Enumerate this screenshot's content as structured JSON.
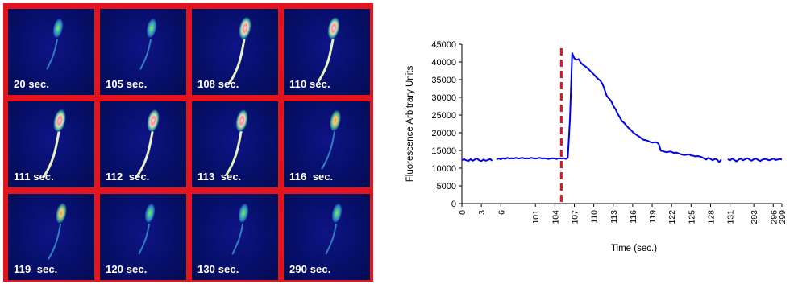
{
  "images": {
    "cells": [
      {
        "label": "20 sec.",
        "level": 0.35
      },
      {
        "label": "105 sec.",
        "level": 0.35
      },
      {
        "label": "108 sec.",
        "level": 0.95
      },
      {
        "label": "110 sec.",
        "level": 0.85
      },
      {
        "label": "111 sec.",
        "level": 1.0
      },
      {
        "label": "112  sec.",
        "level": 0.95
      },
      {
        "label": "113  sec.",
        "level": 0.9
      },
      {
        "label": "116  sec.",
        "level": 0.65
      },
      {
        "label": "119  sec.",
        "level": 0.55
      },
      {
        "label": "120 sec.",
        "level": 0.35
      },
      {
        "label": "130 sec.",
        "level": 0.35
      },
      {
        "label": "290 sec.",
        "level": 0.35
      }
    ],
    "border_color": "#e4141c"
  },
  "chart_data": {
    "type": "line",
    "xlabel": "Time (sec.)",
    "ylabel": "Fluorescence Arbitrary Units",
    "ylim": [
      0,
      45000
    ],
    "yticks": [
      0,
      5000,
      10000,
      15000,
      20000,
      25000,
      30000,
      35000,
      40000,
      45000
    ],
    "xticks": [
      "0",
      "3",
      "6",
      "101",
      "104",
      "107",
      "110",
      "113",
      "116",
      "119",
      "122",
      "125",
      "128",
      "131",
      "293",
      "296",
      "299"
    ],
    "series_color": "#0000ee",
    "stimulus_marker": {
      "after_tick": "104",
      "color": "#e4141c",
      "style": "dashed"
    },
    "series": [
      {
        "segments": [
          [
            [
              0,
              12300
            ],
            [
              1,
              12500
            ],
            [
              2,
              12200
            ],
            [
              3,
              12000
            ],
            [
              4,
              12500
            ],
            [
              5,
              12100
            ],
            [
              6,
              12400
            ],
            [
              7,
              12700
            ],
            [
              8,
              12200
            ],
            [
              9,
              12000
            ],
            [
              10,
              12400
            ],
            [
              11,
              12100
            ],
            [
              12,
              12300
            ],
            [
              13,
              12600
            ],
            [
              14,
              12100
            ]
          ],
          [
            [
              16,
              12400
            ],
            [
              17,
              12700
            ],
            [
              18,
              12500
            ],
            [
              19,
              12800
            ],
            [
              20,
              12600
            ],
            [
              21,
              12900
            ],
            [
              22,
              12700
            ],
            [
              23,
              12800
            ],
            [
              24,
              12700
            ],
            [
              25,
              12900
            ],
            [
              26,
              12700
            ],
            [
              27,
              12800
            ],
            [
              28,
              12900
            ],
            [
              29,
              12700
            ],
            [
              30,
              12800
            ],
            [
              31,
              12700
            ],
            [
              32,
              12900
            ],
            [
              33,
              12800
            ],
            [
              34,
              12700
            ],
            [
              35,
              12800
            ],
            [
              36,
              12900
            ],
            [
              37,
              12700
            ],
            [
              38,
              12800
            ],
            [
              39,
              12700
            ],
            [
              40,
              12600
            ],
            [
              41,
              12700
            ],
            [
              42,
              12800
            ],
            [
              43,
              12700
            ],
            [
              44,
              12600
            ],
            [
              45,
              12800
            ],
            [
              46,
              12700
            ],
            [
              47,
              12800
            ],
            [
              48,
              12600
            ],
            [
              49,
              12900
            ],
            [
              50,
              24000
            ],
            [
              51,
              42500
            ],
            [
              52,
              41000
            ],
            [
              53,
              40600
            ],
            [
              54,
              40800
            ],
            [
              55,
              39800
            ],
            [
              56,
              39200
            ],
            [
              57,
              38800
            ],
            [
              58,
              38300
            ],
            [
              59,
              37700
            ],
            [
              60,
              37100
            ],
            [
              61,
              36500
            ],
            [
              62,
              35800
            ],
            [
              63,
              35200
            ],
            [
              64,
              34700
            ],
            [
              65,
              33800
            ],
            [
              66,
              32200
            ],
            [
              67,
              30400
            ],
            [
              68,
              29700
            ],
            [
              69,
              29000
            ],
            [
              70,
              27600
            ],
            [
              71,
              26700
            ],
            [
              72,
              25400
            ],
            [
              73,
              24400
            ],
            [
              74,
              23300
            ],
            [
              75,
              22800
            ],
            [
              76,
              22100
            ],
            [
              77,
              21400
            ],
            [
              78,
              20900
            ],
            [
              79,
              20200
            ],
            [
              80,
              19700
            ],
            [
              81,
              19300
            ],
            [
              82,
              18900
            ],
            [
              83,
              18400
            ],
            [
              84,
              18000
            ],
            [
              85,
              17900
            ],
            [
              86,
              17700
            ],
            [
              87,
              17400
            ],
            [
              88,
              17200
            ],
            [
              89,
              17300
            ],
            [
              90,
              17300
            ],
            [
              91,
              16900
            ],
            [
              92,
              14900
            ],
            [
              93,
              14800
            ],
            [
              94,
              14600
            ],
            [
              95,
              14500
            ],
            [
              96,
              14700
            ],
            [
              97,
              14600
            ],
            [
              98,
              14300
            ],
            [
              99,
              14400
            ],
            [
              100,
              14200
            ],
            [
              101,
              14000
            ],
            [
              102,
              13800
            ],
            [
              103,
              13700
            ],
            [
              104,
              13800
            ],
            [
              105,
              13900
            ],
            [
              106,
              13600
            ],
            [
              107,
              13500
            ],
            [
              108,
              13300
            ],
            [
              109,
              13400
            ],
            [
              110,
              13300
            ],
            [
              111,
              13100
            ],
            [
              112,
              12700
            ],
            [
              113,
              12400
            ],
            [
              114,
              12900
            ],
            [
              115,
              12600
            ],
            [
              116,
              12200
            ],
            [
              117,
              12600
            ],
            [
              118,
              12400
            ],
            [
              119,
              11700
            ],
            [
              120,
              12400
            ]
          ],
          [
            [
              123,
              12500
            ],
            [
              124,
              12200
            ],
            [
              125,
              12700
            ],
            [
              126,
              12300
            ],
            [
              127,
              11900
            ],
            [
              128,
              12400
            ],
            [
              129,
              12700
            ],
            [
              130,
              12200
            ],
            [
              131,
              12500
            ],
            [
              132,
              12800
            ],
            [
              133,
              12400
            ],
            [
              134,
              12100
            ],
            [
              135,
              12500
            ],
            [
              136,
              12700
            ],
            [
              137,
              12300
            ],
            [
              138,
              12000
            ],
            [
              139,
              12400
            ],
            [
              140,
              12600
            ],
            [
              141,
              12500
            ],
            [
              142,
              12200
            ],
            [
              143,
              12400
            ],
            [
              144,
              12700
            ],
            [
              145,
              12300
            ],
            [
              146,
              12400
            ],
            [
              147,
              12600
            ],
            [
              148,
              12500
            ]
          ]
        ]
      }
    ],
    "x_index_range": [
      0,
      148
    ],
    "xtick_indices": [
      0,
      9,
      18,
      34,
      43,
      52,
      61,
      70,
      79,
      88,
      97,
      106,
      115,
      124,
      135,
      144,
      148
    ],
    "marker_index": 46
  }
}
